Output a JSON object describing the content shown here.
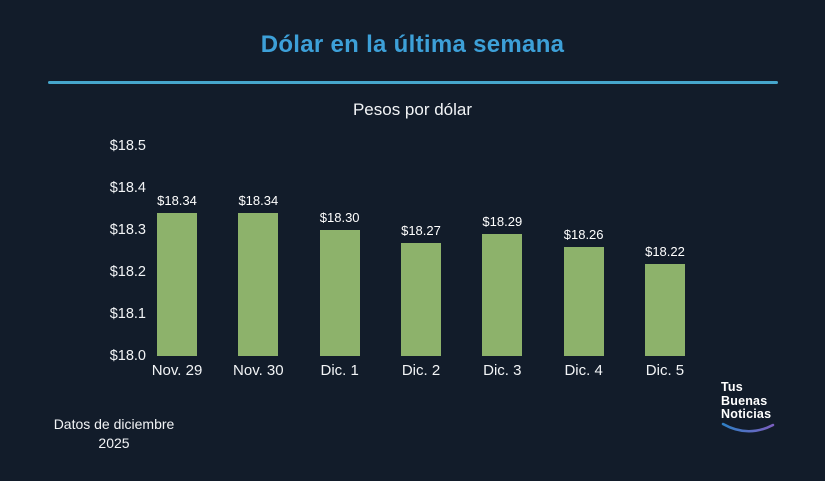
{
  "title": "Dólar en la última semana",
  "subtitle": "Pesos por dólar",
  "footer_note": {
    "line1": "Datos de diciembre",
    "line2": "2025"
  },
  "logo": {
    "line1": "Tus",
    "line2": "Buenas",
    "line3": "Noticias"
  },
  "colors": {
    "background": "#121c2a",
    "title_blue": "#3da0d8",
    "divider_blue": "#46a6cc",
    "bar_green": "#8db26b",
    "text_white": "#f2f4f6",
    "swoosh_start": "#2f7fc4",
    "swoosh_end": "#7b5fc0"
  },
  "chart_data": {
    "type": "bar",
    "title": "Dólar en la última semana",
    "subtitle": "Pesos por dólar",
    "categories": [
      "Nov. 29",
      "Nov. 30",
      "Dic. 1",
      "Dic. 2",
      "Dic. 3",
      "Dic. 4",
      "Dic. 5"
    ],
    "values": [
      18.34,
      18.34,
      18.3,
      18.27,
      18.29,
      18.26,
      18.22
    ],
    "data_labels": [
      "$18.34",
      "$18.34",
      "$18.30",
      "$18.27",
      "$18.29",
      "$18.26",
      "$18.22"
    ],
    "xlabel": "",
    "ylabel": "Pesos por dólar",
    "ylim": [
      18.0,
      18.5
    ],
    "yticks": [
      "$18.5",
      "$18.4",
      "$18.3",
      "$18.2",
      "$18.1",
      "$18.0"
    ],
    "grid": false,
    "legend_position": "none"
  }
}
